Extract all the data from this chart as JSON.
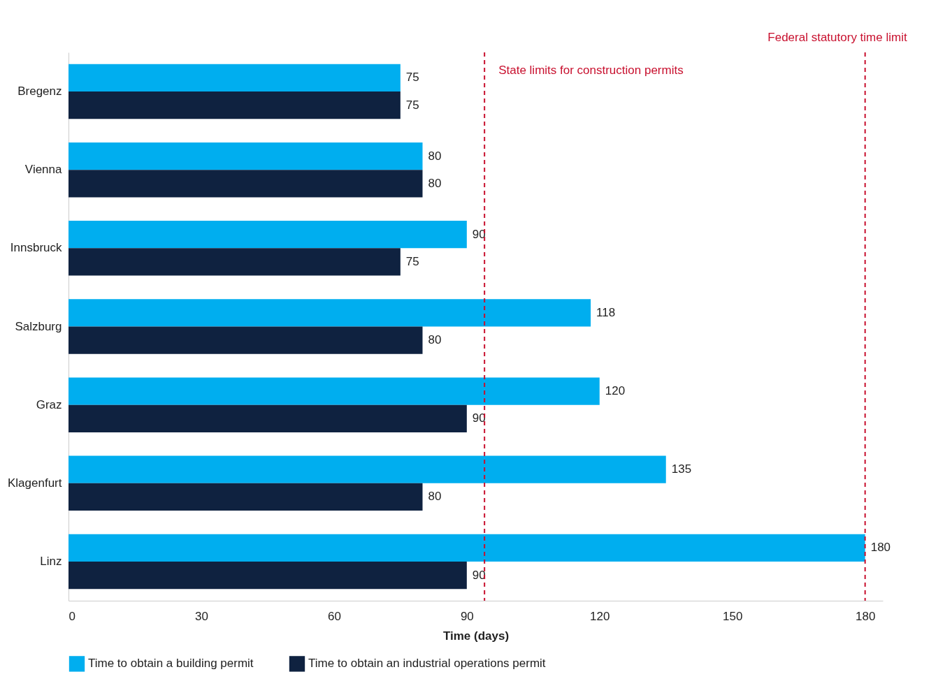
{
  "chart_data": {
    "type": "bar",
    "orientation": "horizontal",
    "categories": [
      "Bregenz",
      "Vienna",
      "Innsbruck",
      "Salzburg",
      "Graz",
      "Klagenfurt",
      "Linz"
    ],
    "series": [
      {
        "name": "Time to obtain a building permit",
        "color": "#00aeef",
        "values": [
          75,
          80,
          90,
          118,
          120,
          135,
          180
        ]
      },
      {
        "name": "Time to obtain an industrial operations permit",
        "color": "#0f2240",
        "values": [
          75,
          80,
          75,
          80,
          90,
          80,
          90
        ]
      }
    ],
    "xlabel": "Time (days)",
    "xlim": [
      0,
      184
    ],
    "xticks": [
      0,
      30,
      60,
      90,
      120,
      150,
      180
    ],
    "ref_lines": [
      {
        "axis": "x",
        "value": 94,
        "label": "State limits for construction permits",
        "color": "#c8102e",
        "line_style": "dashed"
      },
      {
        "axis": "x",
        "value": 180,
        "label": "Federal statutory time limit",
        "color": "#c8102e",
        "line_style": "dashed"
      }
    ],
    "data_labels": true,
    "grid": false,
    "legend": "bottom"
  }
}
